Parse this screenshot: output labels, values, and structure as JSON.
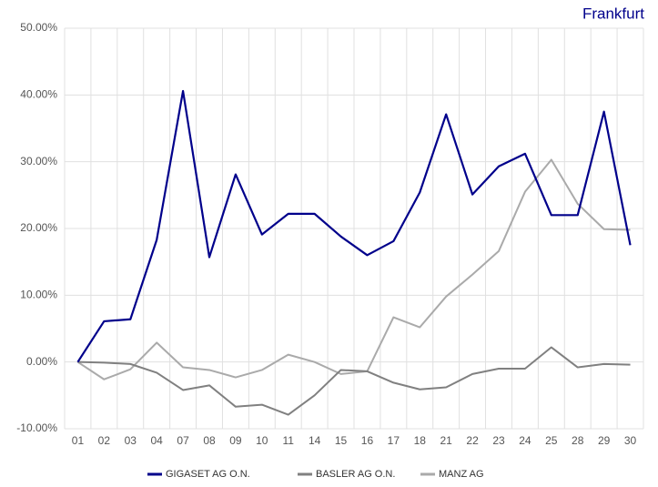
{
  "chart_data": {
    "type": "line",
    "title": "Frankfurt",
    "categories": [
      "01",
      "02",
      "03",
      "04",
      "07",
      "08",
      "09",
      "10",
      "11",
      "14",
      "15",
      "16",
      "17",
      "18",
      "21",
      "22",
      "23",
      "24",
      "25",
      "28",
      "29",
      "30"
    ],
    "series": [
      {
        "name": "GIGASET AG O.N.",
        "color": "#00008b",
        "values": [
          0,
          6.1,
          6.4,
          18.3,
          40.6,
          15.7,
          28.1,
          19.1,
          22.2,
          22.2,
          18.8,
          16.0,
          18.1,
          25.4,
          37.1,
          25.1,
          29.3,
          31.2,
          22.0,
          22.0,
          37.5,
          17.5
        ]
      },
      {
        "name": "BASLER AG O.N.",
        "color": "#808080",
        "values": [
          0,
          -0.1,
          -0.3,
          -1.6,
          -4.2,
          -3.5,
          -6.7,
          -6.4,
          -7.9,
          -5.0,
          -1.2,
          -1.4,
          -3.1,
          -4.1,
          -3.8,
          -1.8,
          -1.0,
          -1.0,
          2.2,
          -0.8,
          -0.3,
          -0.4
        ]
      },
      {
        "name": "MANZ AG",
        "color": "#aaaaaa",
        "values": [
          0,
          -2.6,
          -1.1,
          2.9,
          -0.8,
          -1.2,
          -2.3,
          -1.2,
          1.1,
          0,
          -1.8,
          -1.4,
          6.7,
          5.2,
          9.8,
          13.1,
          16.6,
          25.5,
          30.3,
          23.7,
          19.9,
          19.8
        ]
      }
    ],
    "ylim": [
      -10,
      50
    ],
    "yticks": [
      {
        "value": -10,
        "label": "-10.00%"
      },
      {
        "value": 0,
        "label": "0.00%"
      },
      {
        "value": 10,
        "label": "10.00%"
      },
      {
        "value": 20,
        "label": "20.00%"
      },
      {
        "value": 30,
        "label": "30.00%"
      },
      {
        "value": 40,
        "label": "40.00%"
      },
      {
        "value": 50,
        "label": "50.00%"
      }
    ],
    "grid": true
  }
}
